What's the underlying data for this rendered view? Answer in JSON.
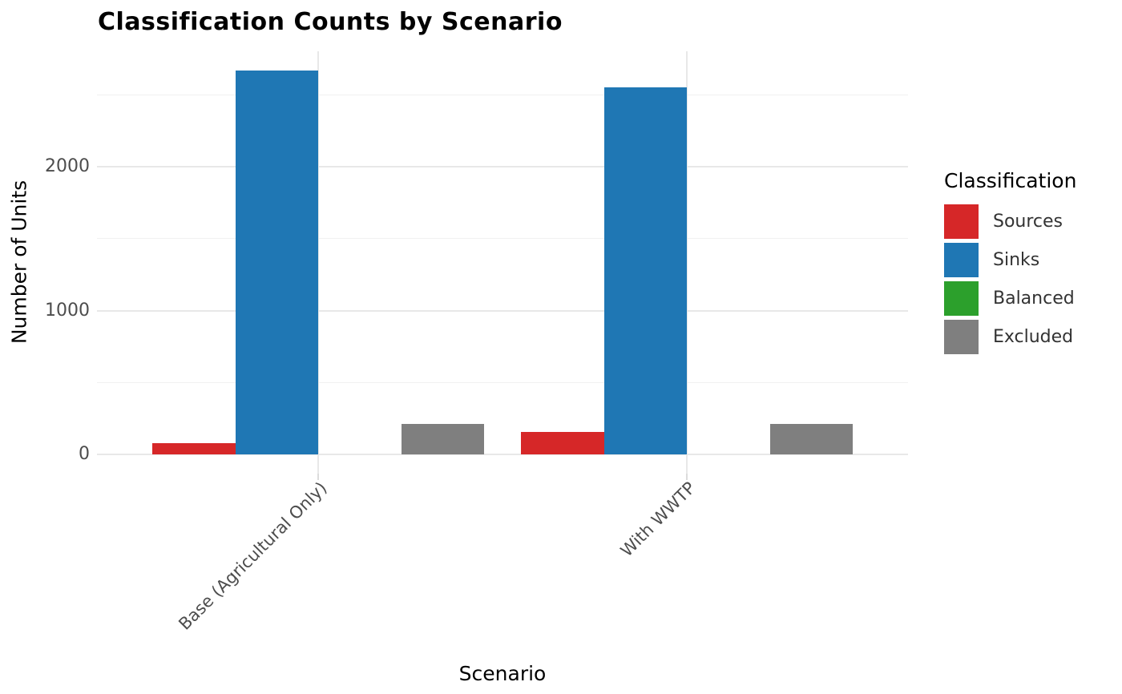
{
  "chart_data": {
    "type": "bar",
    "mode": "grouped-dodge",
    "title": "Classification Counts by Scenario",
    "xlabel": "Scenario",
    "ylabel": "Number of Units",
    "categories": [
      "Base (Agricultural Only)",
      "With WWTP"
    ],
    "series": [
      {
        "name": "Sources",
        "color": "#d62728",
        "values": [
          80,
          155
        ]
      },
      {
        "name": "Sinks",
        "color": "#1f77b4",
        "values": [
          2670,
          2550
        ]
      },
      {
        "name": "Balanced",
        "color": "#2ca02c",
        "values": [
          0,
          0
        ]
      },
      {
        "name": "Excluded",
        "color": "#7f7f7f",
        "values": [
          210,
          210
        ]
      }
    ],
    "y_major_ticks": [
      0,
      1000,
      2000
    ],
    "y_tick_labels": [
      "0",
      "1000",
      "2000"
    ],
    "y_minor_ticks": [
      500,
      1500,
      2500
    ],
    "ylim": [
      0,
      2800
    ],
    "grid": true,
    "legend": {
      "title": "Classification",
      "position": "right"
    }
  }
}
